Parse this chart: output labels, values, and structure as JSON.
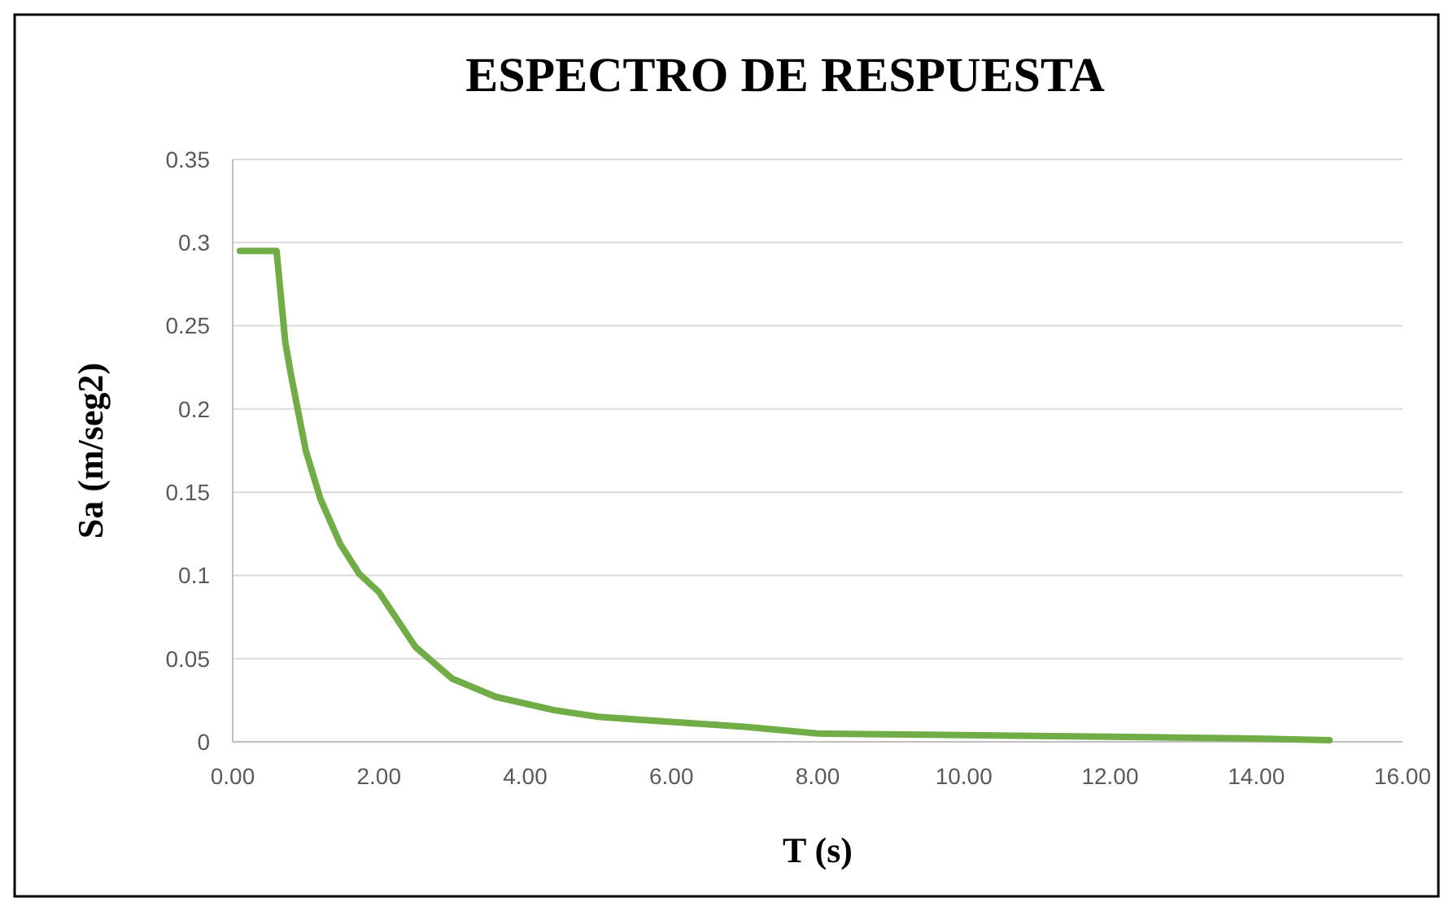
{
  "chart_data": {
    "type": "line",
    "title": "ESPECTRO DE RESPUESTA",
    "xlabel": "T (s)",
    "ylabel": "Sa (m/seg2)",
    "x": [
      0.1,
      0.6,
      0.72,
      0.8,
      1.0,
      1.2,
      1.47,
      1.73,
      2.0,
      2.5,
      3.0,
      3.6,
      4.4,
      5.0,
      6.0,
      7.0,
      8.0,
      10.0,
      12.0,
      14.0,
      15.0
    ],
    "series": [
      {
        "color": "#70ad47",
        "values": [
          0.295,
          0.295,
          0.24,
          0.22,
          0.175,
          0.146,
          0.119,
          0.101,
          0.09,
          0.057,
          0.038,
          0.027,
          0.019,
          0.015,
          0.012,
          0.009,
          0.005,
          0.004,
          0.003,
          0.002,
          0.001
        ]
      }
    ],
    "xlim": [
      0,
      16
    ],
    "ylim": [
      0,
      0.35
    ],
    "xticks": [
      {
        "value": 0,
        "label": "0.00"
      },
      {
        "value": 2,
        "label": "2.00"
      },
      {
        "value": 4,
        "label": "4.00"
      },
      {
        "value": 6,
        "label": "6.00"
      },
      {
        "value": 8,
        "label": "8.00"
      },
      {
        "value": 10,
        "label": "10.00"
      },
      {
        "value": 12,
        "label": "12.00"
      },
      {
        "value": 14,
        "label": "14.00"
      },
      {
        "value": 16,
        "label": "16.00"
      }
    ],
    "yticks": [
      0,
      0.05,
      0.1,
      0.15,
      0.2,
      0.25,
      0.3,
      0.35
    ],
    "grid": "y",
    "marker": "none",
    "line_style": "solid"
  }
}
